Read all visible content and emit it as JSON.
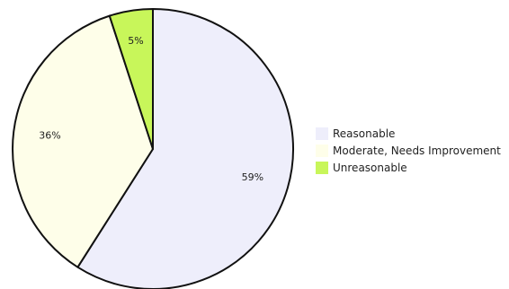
{
  "chart_data": {
    "type": "pie",
    "title": "",
    "slices": [
      {
        "label": "Reasonable",
        "value": 59,
        "display": "59%",
        "color": "#eeeefb"
      },
      {
        "label": "Moderate, Needs Improvement",
        "value": 36,
        "display": "36%",
        "color": "#fefee9"
      },
      {
        "label": "Unreasonable",
        "value": 5,
        "display": "5%",
        "color": "#c8f65a"
      }
    ],
    "legend_position": "right",
    "border_color": "#111111"
  }
}
